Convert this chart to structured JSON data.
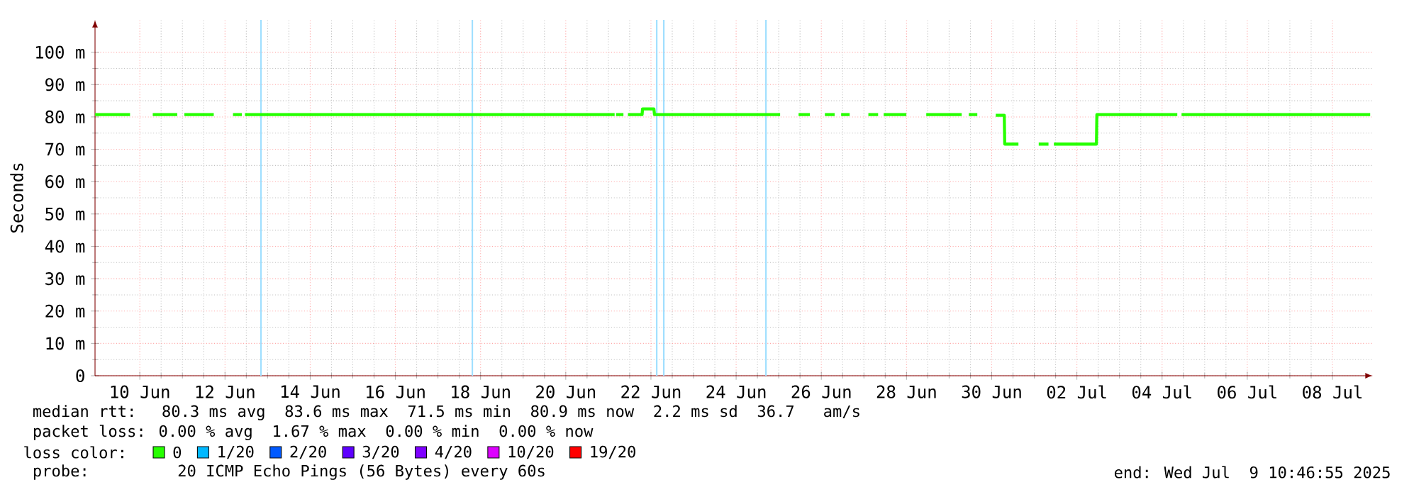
{
  "chart_data": {
    "type": "line",
    "ylabel": "Seconds",
    "xlim": [
      "2025-06-09T10:46",
      "2025-07-09T10:46"
    ],
    "xticks": [
      {
        "value": "2025-06-10T12:00",
        "label": "10 Jun"
      },
      {
        "value": "2025-06-12T12:00",
        "label": "12 Jun"
      },
      {
        "value": "2025-06-14T12:00",
        "label": "14 Jun"
      },
      {
        "value": "2025-06-16T12:00",
        "label": "16 Jun"
      },
      {
        "value": "2025-06-18T12:00",
        "label": "18 Jun"
      },
      {
        "value": "2025-06-20T12:00",
        "label": "20 Jun"
      },
      {
        "value": "2025-06-22T12:00",
        "label": "22 Jun"
      },
      {
        "value": "2025-06-24T12:00",
        "label": "24 Jun"
      },
      {
        "value": "2025-06-26T12:00",
        "label": "26 Jun"
      },
      {
        "value": "2025-06-28T12:00",
        "label": "28 Jun"
      },
      {
        "value": "2025-06-30T12:00",
        "label": "30 Jun"
      },
      {
        "value": "2025-07-02T12:00",
        "label": "02 Jul"
      },
      {
        "value": "2025-07-04T12:00",
        "label": "04 Jul"
      },
      {
        "value": "2025-07-06T12:00",
        "label": "06 Jul"
      },
      {
        "value": "2025-07-08T12:00",
        "label": "08 Jul"
      }
    ],
    "ylim": [
      0,
      110
    ],
    "yticks": [
      0,
      {
        "value": 10,
        "label": "10 m"
      },
      {
        "value": 20,
        "label": "20 m"
      },
      {
        "value": 30,
        "label": "30 m"
      },
      {
        "value": 40,
        "label": "40 m"
      },
      {
        "value": 50,
        "label": "50 m"
      },
      {
        "value": 60,
        "label": "60 m"
      },
      {
        "value": 70,
        "label": "70 m"
      },
      {
        "value": 80,
        "label": "80 m"
      },
      {
        "value": 90,
        "label": "90 m"
      },
      {
        "value": 100,
        "label": "100 m"
      }
    ],
    "grid": true,
    "legend": "bottom",
    "legend_title": "loss color:",
    "x": [
      "2025-06-09T10:50",
      "2025-06-10T06:30",
      "2025-06-10T13:00",
      "2025-06-10T19:18",
      "2025-06-11T09:07",
      "2025-06-11T11:00",
      "2025-06-11T13:07",
      "2025-06-12T05:40",
      "2025-06-12T12:00",
      "2025-06-12T16:30",
      "2025-06-12T21:30",
      "2025-06-12T22:20",
      "2025-06-12T23:15",
      "2025-06-19T22:00",
      "2025-06-21T15:32",
      "2025-06-21T15:50",
      "2025-06-21T16:20",
      "2025-06-21T20:30",
      "2025-06-21T21:30",
      "2025-06-21T23:02",
      "2025-06-22T07:00",
      "2025-06-22T07:16",
      "2025-06-22T13:39",
      "2025-06-22T14:00",
      "2025-06-25T12:47",
      "2025-06-25T18:00",
      "2025-06-25T23:11",
      "2025-06-26T05:34",
      "2025-06-26T10:00",
      "2025-06-26T14:00",
      "2025-06-26T19:30",
      "2025-06-26T20:30",
      "2025-06-26T23:10",
      "2025-06-27T03:58",
      "2025-06-27T10:00",
      "2025-06-27T14:30",
      "2025-06-27T20:00",
      "2025-06-27T21:00",
      "2025-06-27T23:08",
      "2025-06-28T11:54",
      "2025-06-28T17:00",
      "2025-06-28T23:07",
      "2025-06-29T19:05",
      "2025-06-29T21:00",
      "2025-06-29T23:05",
      "2025-06-30T03:53",
      "2025-06-30T09:00",
      "2025-06-30T14:17",
      "2025-06-30T19:05",
      "2025-06-30T19:20",
      "2025-07-01T03:04",
      "2025-07-01T10:00",
      "2025-07-01T14:30",
      "2025-07-01T20:00",
      "2025-07-01T21:00",
      "2025-07-01T23:02",
      "2025-07-02T23:01",
      "2025-07-02T23:15",
      "2025-07-04T20:34",
      "2025-07-04T21:45",
      "2025-07-04T22:58",
      "2025-07-09T09:15"
    ],
    "series": [
      {
        "name": "0",
        "color": "#26ff00",
        "values": [
          80.7,
          80.7,
          null,
          80.7,
          80.7,
          null,
          80.7,
          80.7,
          null,
          80.7,
          80.7,
          null,
          80.7,
          80.7,
          80.7,
          null,
          80.7,
          80.7,
          null,
          80.7,
          80.7,
          82.5,
          82.5,
          80.7,
          80.7,
          null,
          80.7,
          80.7,
          null,
          80.7,
          80.7,
          null,
          80.7,
          80.7,
          null,
          80.7,
          80.7,
          null,
          80.7,
          80.7,
          null,
          80.7,
          80.7,
          null,
          80.7,
          80.7,
          null,
          80.5,
          80.5,
          71.6,
          71.6,
          null,
          71.6,
          71.6,
          null,
          71.6,
          71.6,
          80.7,
          80.7,
          null,
          80.7,
          80.7
        ]
      },
      {
        "name": "1/20",
        "color": "#00b8ff",
        "values": [
          null,
          null,
          null,
          null,
          null,
          null,
          null,
          null,
          null,
          null,
          null,
          null,
          null,
          null,
          null,
          null,
          null,
          null,
          null,
          null,
          null,
          null,
          null,
          null,
          null,
          null,
          null,
          null,
          null,
          null,
          null,
          null,
          null,
          null,
          null,
          null,
          null,
          null,
          null,
          null,
          null,
          null,
          null,
          null,
          null,
          null,
          null,
          null,
          null,
          null,
          null,
          null,
          null,
          null,
          null,
          null,
          null,
          null,
          null,
          null,
          null,
          null
        ]
      },
      {
        "name": "2/20",
        "color": "#0059ff",
        "values": [
          null,
          null,
          null,
          null,
          null,
          null,
          null,
          null,
          null,
          null,
          null,
          null,
          null,
          null,
          null,
          null,
          null,
          null,
          null,
          null,
          null,
          null,
          null,
          null,
          null,
          null,
          null,
          null,
          null,
          null,
          null,
          null,
          null,
          null,
          null,
          null,
          null,
          null,
          null,
          null,
          null,
          null,
          null,
          null,
          null,
          null,
          null,
          null,
          null,
          null,
          null,
          null,
          null,
          null,
          null,
          null,
          null,
          null,
          null,
          null,
          null,
          null
        ]
      },
      {
        "name": "3/20",
        "color": "#5e00ff",
        "values": [
          null,
          null,
          null,
          null,
          null,
          null,
          null,
          null,
          null,
          null,
          null,
          null,
          null,
          null,
          null,
          null,
          null,
          null,
          null,
          null,
          null,
          null,
          null,
          null,
          null,
          null,
          null,
          null,
          null,
          null,
          null,
          null,
          null,
          null,
          null,
          null,
          null,
          null,
          null,
          null,
          null,
          null,
          null,
          null,
          null,
          null,
          null,
          null,
          null,
          null,
          null,
          null,
          null,
          null,
          null,
          null,
          null,
          null,
          null,
          null,
          null,
          null
        ]
      },
      {
        "name": "4/20",
        "color": "#7e00ff",
        "values": [
          null,
          null,
          null,
          null,
          null,
          null,
          null,
          null,
          null,
          null,
          null,
          null,
          null,
          null,
          null,
          null,
          null,
          null,
          null,
          null,
          null,
          null,
          null,
          null,
          null,
          null,
          null,
          null,
          null,
          null,
          null,
          null,
          null,
          null,
          null,
          null,
          null,
          null,
          null,
          null,
          null,
          null,
          null,
          null,
          null,
          null,
          null,
          null,
          null,
          null,
          null,
          null,
          null,
          null,
          null,
          null,
          null,
          null,
          null,
          null,
          null,
          null
        ]
      },
      {
        "name": "10/20",
        "color": "#dd00ff",
        "values": [
          null,
          null,
          null,
          null,
          null,
          null,
          null,
          null,
          null,
          null,
          null,
          null,
          null,
          null,
          null,
          null,
          null,
          null,
          null,
          null,
          null,
          null,
          null,
          null,
          null,
          null,
          null,
          null,
          null,
          null,
          null,
          null,
          null,
          null,
          null,
          null,
          null,
          null,
          null,
          null,
          null,
          null,
          null,
          null,
          null,
          null,
          null,
          null,
          null,
          null,
          null,
          null,
          null,
          null,
          null,
          null,
          null,
          null,
          null,
          null,
          null,
          null
        ]
      },
      {
        "name": "19/20",
        "color": "#ff0000",
        "values": [
          null,
          null,
          null,
          null,
          null,
          null,
          null,
          null,
          null,
          null,
          null,
          null,
          null,
          null,
          null,
          null,
          null,
          null,
          null,
          null,
          null,
          null,
          null,
          null,
          null,
          null,
          null,
          null,
          null,
          null,
          null,
          null,
          null,
          null,
          null,
          null,
          null,
          null,
          null,
          null,
          null,
          null,
          null,
          null,
          null,
          null,
          null,
          null,
          null,
          null,
          null,
          null,
          null,
          null,
          null,
          null,
          null,
          null,
          null,
          null,
          null,
          null
        ]
      }
    ],
    "ref_lines": [
      {
        "axis": "x",
        "value": "2025-06-13T08:17",
        "color": "#9fdfff"
      },
      {
        "axis": "x",
        "value": "2025-06-18T07:22",
        "color": "#9fdfff"
      },
      {
        "axis": "x",
        "value": "2025-06-22T15:16",
        "color": "#9fdfff"
      },
      {
        "axis": "x",
        "value": "2025-06-22T19:15",
        "color": "#9fdfff"
      },
      {
        "axis": "x",
        "value": "2025-06-25T04:48",
        "color": "#9fdfff"
      }
    ],
    "annotations": [
      "median rtt:  80.3 ms avg  83.6 ms max  71.5 ms min  80.9 ms now  2.2 ms sd  36.7   am/s",
      "packet loss: 0.00 % avg  1.67 % max  0.00 % min  0.00 % now",
      "probe:       20 ICMP Echo Pings (56 Bytes) every 60s",
      "end: Wed Jul  9 10:46:55 2025"
    ]
  }
}
